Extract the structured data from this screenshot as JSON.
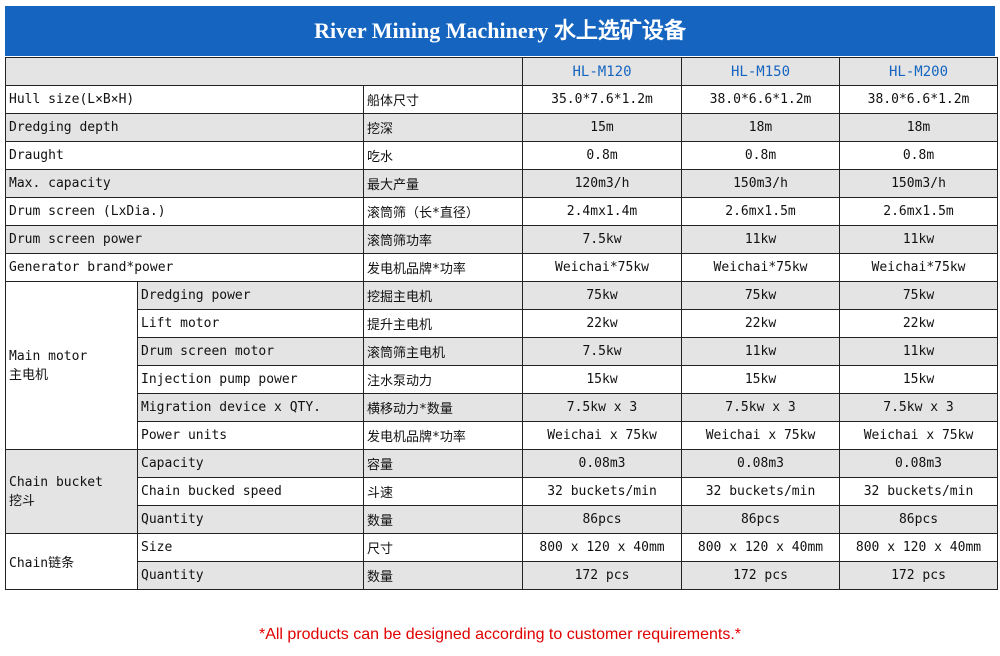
{
  "title": "River Mining Machinery 水上选矿设备",
  "footer": "*All products can be designed according to customer requirements.*",
  "table": {
    "header": [
      "HL-M120",
      "HL-M150",
      "HL-M200"
    ],
    "rows": [
      {
        "label": "Hull size(L×B×H)",
        "zh": "船体尺寸",
        "values": [
          "35.0*7.6*1.2m",
          "38.0*6.6*1.2m",
          "38.0*6.6*1.2m"
        ]
      },
      {
        "label": "Dredging depth",
        "zh": "挖深",
        "values": [
          "15m",
          "18m",
          "18m"
        ]
      },
      {
        "label": "Draught",
        "zh": "吃水",
        "values": [
          "0.8m",
          "0.8m",
          "0.8m"
        ]
      },
      {
        "label": "Max. capacity",
        "zh": "最大产量",
        "values": [
          "120m3/h",
          "150m3/h",
          "150m3/h"
        ]
      },
      {
        "label": "Drum screen (LxDia.)",
        "zh": "滚筒筛（长*直径）",
        "values": [
          "2.4mx1.4m",
          "2.6mx1.5m",
          "2.6mx1.5m"
        ]
      },
      {
        "label": "Drum screen power",
        "zh": "滚筒筛功率",
        "values": [
          "7.5kw",
          "11kw",
          "11kw"
        ]
      },
      {
        "label": "Generator brand*power",
        "zh": "发电机品牌*功率",
        "values": [
          "Weichai*75kw",
          "Weichai*75kw",
          "Weichai*75kw"
        ]
      }
    ],
    "groups": [
      {
        "label": "Main motor",
        "zh": "主电机",
        "rows": [
          {
            "label": "Dredging power",
            "zh": "挖掘主电机",
            "values": [
              "75kw",
              "75kw",
              "75kw"
            ]
          },
          {
            "label": "Lift motor",
            "zh": "提升主电机",
            "values": [
              "22kw",
              "22kw",
              "22kw"
            ]
          },
          {
            "label": "Drum screen motor",
            "zh": "滚筒筛主电机",
            "values": [
              "7.5kw",
              "11kw",
              "11kw"
            ]
          },
          {
            "label": "Injection pump power",
            "zh": "注水泵动力",
            "values": [
              "15kw",
              "15kw",
              "15kw"
            ]
          },
          {
            "label": "Migration device x QTY.",
            "zh": "横移动力*数量",
            "values": [
              "7.5kw x 3",
              "7.5kw x 3",
              "7.5kw x 3"
            ]
          },
          {
            "label": "Power units",
            "zh": "发电机品牌*功率",
            "values": [
              "Weichai x 75kw",
              "Weichai x 75kw",
              "Weichai x 75kw"
            ]
          }
        ]
      },
      {
        "label": "Chain bucket",
        "zh": "挖斗",
        "rows": [
          {
            "label": "Capacity",
            "zh": "容量",
            "values": [
              "0.08m3",
              "0.08m3",
              "0.08m3"
            ]
          },
          {
            "label": "Chain bucked speed",
            "zh": "斗速",
            "values": [
              "32 buckets/min",
              "32 buckets/min",
              "32 buckets/min"
            ]
          },
          {
            "label": "Quantity",
            "zh": "数量",
            "values": [
              "86pcs",
              "86pcs",
              "86pcs"
            ]
          }
        ]
      },
      {
        "label": "Chain",
        "zh": "链条",
        "inline": true,
        "rows": [
          {
            "label": "Size",
            "zh": "尺寸",
            "values": [
              "800 x 120 x 40mm",
              "800 x 120 x 40mm",
              "800 x 120 x 40mm"
            ]
          },
          {
            "label": "Quantity",
            "zh": "数量",
            "values": [
              "172 pcs",
              "172 pcs",
              "172 pcs"
            ]
          }
        ]
      }
    ]
  }
}
